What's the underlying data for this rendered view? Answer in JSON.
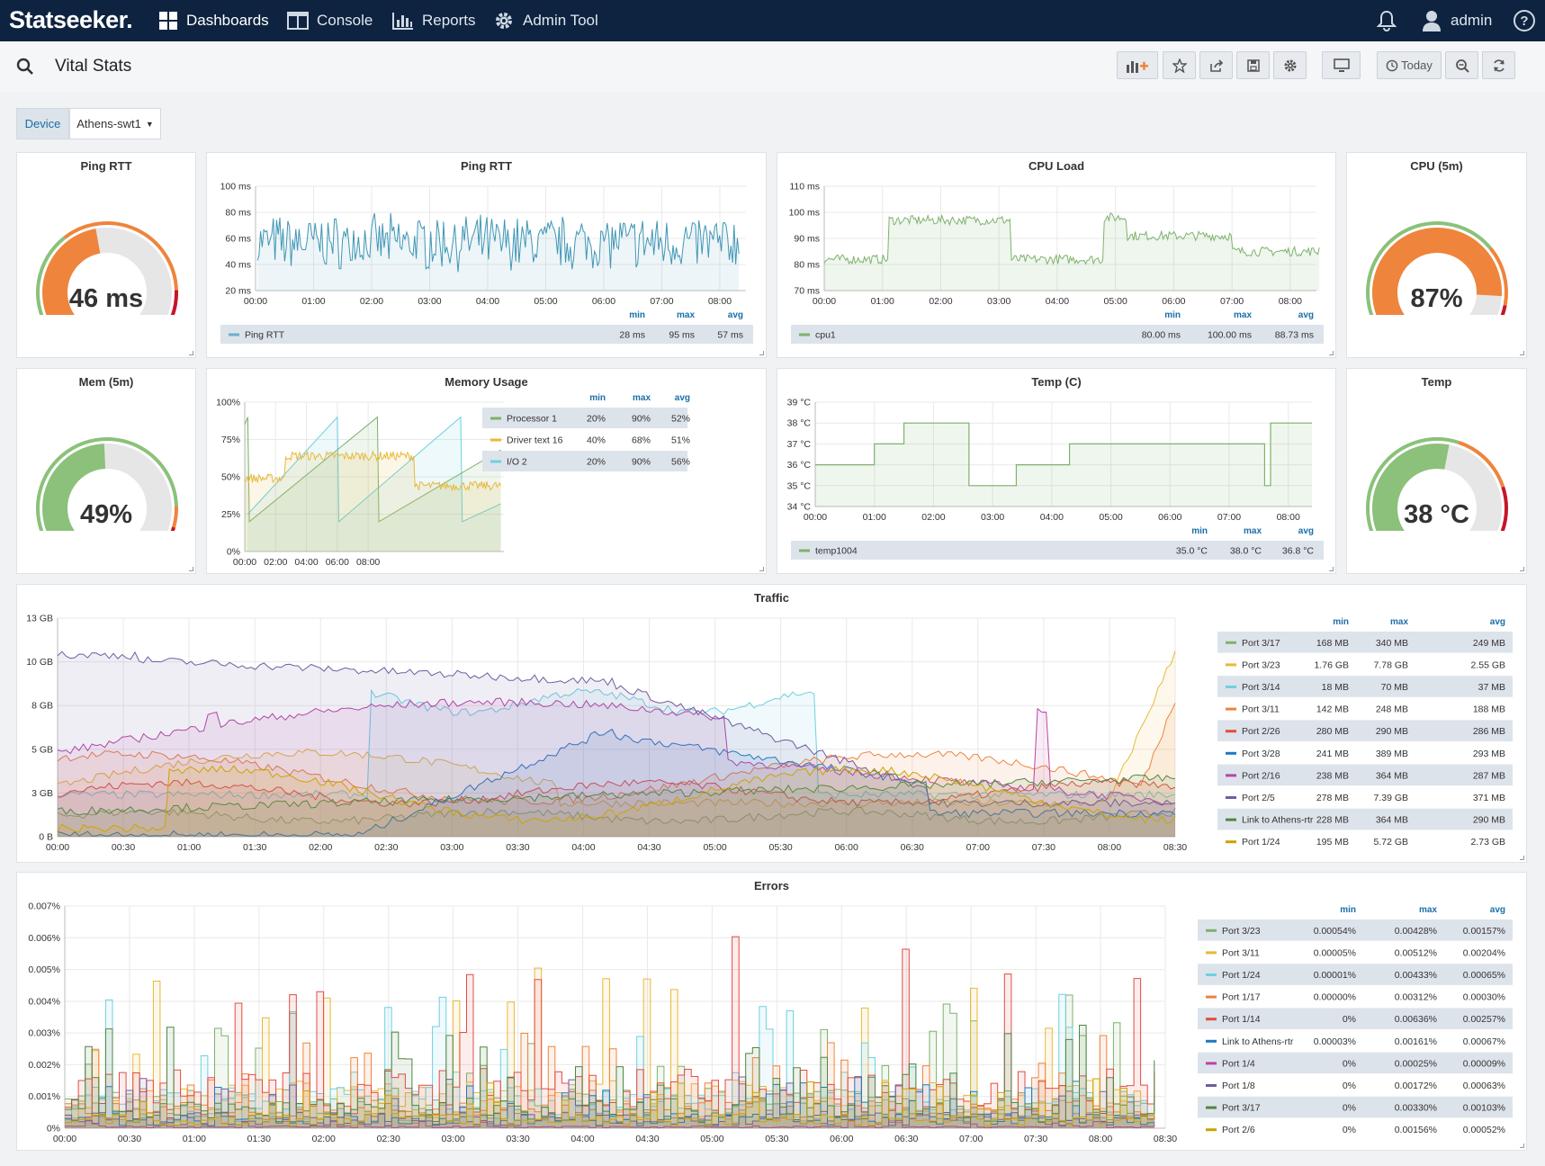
{
  "topbar": {
    "brand": "Statseeker.",
    "nav": [
      {
        "label": "Dashboards",
        "icon": "grid-icon"
      },
      {
        "label": "Console",
        "icon": "console-icon"
      },
      {
        "label": "Reports",
        "icon": "bar-chart-icon"
      },
      {
        "label": "Admin Tool",
        "icon": "gear-icon"
      }
    ],
    "user": "admin"
  },
  "page": {
    "title": "Vital Stats"
  },
  "toolbar": {
    "today_label": "Today"
  },
  "variable": {
    "label": "Device",
    "value": "Athens-swt1"
  },
  "legend_headers": {
    "min": "min",
    "max": "max",
    "avg": "avg"
  },
  "gauges": {
    "ping": {
      "title": "Ping RTT",
      "value": 46,
      "unit": "ms",
      "display": "46 ms",
      "min": 0,
      "max": 100
    },
    "cpu": {
      "title": "CPU (5m)",
      "value": 87,
      "display": "87%",
      "min": 0,
      "max": 100
    },
    "mem": {
      "title": "Mem (5m)",
      "value": 49,
      "display": "49%",
      "min": 0,
      "max": 100
    },
    "temp": {
      "title": "Temp",
      "value": 38,
      "display": "38 °C",
      "min": 0,
      "max": 70
    }
  },
  "colors": {
    "green": "#7eb26d",
    "yellow": "#eab839",
    "cyan": "#6ed0e0",
    "orange": "#ef843c",
    "red": "#e24d42",
    "blue": "#1f78c1",
    "pink": "#ba43a9",
    "purple": "#705da0",
    "darkgreen": "#508642",
    "gold": "#cca300",
    "gaugeOrange": "#ef843c",
    "gaugeGreen": "#8bc17a",
    "gaugeRed": "#c4162a",
    "gaugeBg": "#e6e6e6"
  },
  "chart_data": [
    {
      "id": "ping",
      "type": "line",
      "title": "Ping RTT",
      "x": [
        "00:00",
        "01:00",
        "02:00",
        "03:00",
        "04:00",
        "05:00",
        "06:00",
        "07:00",
        "08:00"
      ],
      "ylim": [
        20,
        100
      ],
      "yticks": [
        "20 ms",
        "40 ms",
        "60 ms",
        "80 ms",
        "100 ms"
      ],
      "series": [
        {
          "name": "Ping RTT",
          "min": "28 ms",
          "max": "95 ms",
          "avg": "57 ms",
          "mean": 57,
          "spread": 18
        }
      ]
    },
    {
      "id": "cpuload",
      "type": "line",
      "title": "CPU Load",
      "x": [
        "00:00",
        "01:00",
        "02:00",
        "03:00",
        "04:00",
        "05:00",
        "06:00",
        "07:00",
        "08:00"
      ],
      "ylim": [
        70,
        110
      ],
      "yticks": [
        "70 ms",
        "80 ms",
        "90 ms",
        "100 ms",
        "110 ms"
      ],
      "series": [
        {
          "name": "cpu1",
          "min": "80.00 ms",
          "max": "100.00 ms",
          "avg": "88.73 ms"
        }
      ],
      "levels": [
        [
          0,
          82
        ],
        [
          1.1,
          97
        ],
        [
          3.2,
          82
        ],
        [
          4.8,
          98
        ],
        [
          5.2,
          91
        ],
        [
          7.0,
          85
        ],
        [
          8.5,
          86
        ]
      ]
    },
    {
      "id": "memory",
      "type": "line",
      "title": "Memory Usage",
      "x": [
        "00:00",
        "02:00",
        "04:00",
        "06:00",
        "08:00"
      ],
      "ylim": [
        0,
        100
      ],
      "yticks": [
        "0%",
        "25%",
        "50%",
        "75%",
        "100%"
      ],
      "series": [
        {
          "name": "Processor 1",
          "min": "20%",
          "max": "90%",
          "avg": "52%"
        },
        {
          "name": "Driver text 16",
          "min": "40%",
          "max": "68%",
          "avg": "51%"
        },
        {
          "name": "I/O 2",
          "min": "20%",
          "max": "90%",
          "avg": "56%"
        }
      ]
    },
    {
      "id": "temp",
      "type": "line",
      "title": "Temp (C)",
      "x": [
        "00:00",
        "01:00",
        "02:00",
        "03:00",
        "04:00",
        "05:00",
        "06:00",
        "07:00",
        "08:00"
      ],
      "ylim": [
        34,
        39
      ],
      "yticks": [
        "34 °C",
        "35 °C",
        "36 °C",
        "37 °C",
        "38 °C",
        "39 °C"
      ],
      "series": [
        {
          "name": "temp1004",
          "min": "35.0 °C",
          "max": "38.0 °C",
          "avg": "36.8 °C"
        }
      ],
      "levels": [
        [
          0,
          36
        ],
        [
          1.0,
          37
        ],
        [
          1.5,
          38
        ],
        [
          2.6,
          35
        ],
        [
          3.4,
          36
        ],
        [
          4.3,
          37
        ],
        [
          7.6,
          35
        ],
        [
          7.7,
          38
        ],
        [
          8.3,
          38
        ]
      ]
    },
    {
      "id": "traffic",
      "type": "area",
      "title": "Traffic",
      "x": [
        "00:00",
        "00:30",
        "01:00",
        "01:30",
        "02:00",
        "02:30",
        "03:00",
        "03:30",
        "04:00",
        "04:30",
        "05:00",
        "05:30",
        "06:00",
        "06:30",
        "07:00",
        "07:30",
        "08:00",
        "08:30"
      ],
      "ylim": [
        0,
        13
      ],
      "yticks": [
        "0 B",
        "3 GB",
        "5 GB",
        "8 GB",
        "10 GB",
        "13 GB"
      ],
      "series": [
        {
          "name": "Port 3/17",
          "min": "168 MB",
          "max": "340 MB",
          "avg": "249 MB"
        },
        {
          "name": "Port 3/23",
          "min": "1.76 GB",
          "max": "7.78 GB",
          "avg": "2.55 GB"
        },
        {
          "name": "Port 3/14",
          "min": "18 MB",
          "max": "70 MB",
          "avg": "37 MB"
        },
        {
          "name": "Port 3/11",
          "min": "142 MB",
          "max": "248 MB",
          "avg": "188 MB"
        },
        {
          "name": "Port 2/26",
          "min": "280 MB",
          "max": "290 MB",
          "avg": "286 MB"
        },
        {
          "name": "Port 3/28",
          "min": "241 MB",
          "max": "389 MB",
          "avg": "293 MB"
        },
        {
          "name": "Port 2/16",
          "min": "238 MB",
          "max": "364 MB",
          "avg": "287 MB"
        },
        {
          "name": "Port 2/5",
          "min": "278 MB",
          "max": "7.39 GB",
          "avg": "371 MB"
        },
        {
          "name": "Link to Athens-rtr",
          "min": "228 MB",
          "max": "364 MB",
          "avg": "290 MB"
        },
        {
          "name": "Port 1/24",
          "min": "195 MB",
          "max": "5.72 GB",
          "avg": "2.73 GB"
        }
      ]
    },
    {
      "id": "errors",
      "type": "area",
      "title": "Errors",
      "x": [
        "00:00",
        "00:30",
        "01:00",
        "01:30",
        "02:00",
        "02:30",
        "03:00",
        "03:30",
        "04:00",
        "04:30",
        "05:00",
        "05:30",
        "06:00",
        "06:30",
        "07:00",
        "07:30",
        "08:00",
        "08:30"
      ],
      "ylim": [
        0,
        0.007
      ],
      "yticks": [
        "0%",
        "0.001%",
        "0.002%",
        "0.003%",
        "0.004%",
        "0.005%",
        "0.006%",
        "0.007%"
      ],
      "series": [
        {
          "name": "Port 3/23",
          "min": "0.00054%",
          "max": "0.00428%",
          "avg": "0.00157%"
        },
        {
          "name": "Port 3/11",
          "min": "0.00005%",
          "max": "0.00512%",
          "avg": "0.00204%"
        },
        {
          "name": "Port 1/24",
          "min": "0.00001%",
          "max": "0.00433%",
          "avg": "0.00065%"
        },
        {
          "name": "Port 1/17",
          "min": "0.00000%",
          "max": "0.00312%",
          "avg": "0.00030%"
        },
        {
          "name": "Port 1/14",
          "min": "0%",
          "max": "0.00636%",
          "avg": "0.00257%"
        },
        {
          "name": "Link to Athens-rtr",
          "min": "0.00003%",
          "max": "0.00161%",
          "avg": "0.00067%"
        },
        {
          "name": "Port 1/4",
          "min": "0%",
          "max": "0.00025%",
          "avg": "0.00009%"
        },
        {
          "name": "Port 1/8",
          "min": "0%",
          "max": "0.00172%",
          "avg": "0.00063%"
        },
        {
          "name": "Port 3/17",
          "min": "0%",
          "max": "0.00330%",
          "avg": "0.00103%"
        },
        {
          "name": "Port 2/6",
          "min": "0%",
          "max": "0.00156%",
          "avg": "0.00052%"
        }
      ]
    }
  ]
}
